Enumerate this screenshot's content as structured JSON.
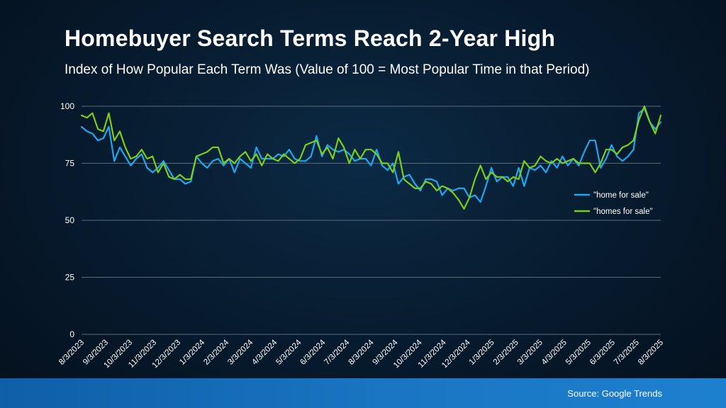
{
  "title": "Homebuyer Search Terms Reach 2-Year High",
  "subtitle": "Index of How Popular Each Term Was (Value of 100 = Most Popular Time in that Period)",
  "source": "Source: Google Trends",
  "colors": {
    "home_for_sale": "#1ea7f0",
    "homes_for_sale": "#7ccc1a",
    "gridline": "#5a6b7c",
    "axis_text": "#ffffff"
  },
  "chart_data": {
    "type": "line",
    "xlabel": "",
    "ylabel": "",
    "ylim": [
      0,
      100
    ],
    "yticks": [
      0,
      25,
      50,
      75,
      100
    ],
    "grid": true,
    "legend_position": "right",
    "x_tick_labels": [
      "8/3/2023",
      "9/3/2023",
      "10/3/2023",
      "11/3/2023",
      "12/3/2023",
      "1/3/2024",
      "2/3/2024",
      "3/3/2024",
      "4/3/2024",
      "5/3/2024",
      "6/3/2024",
      "7/3/2024",
      "8/3/2024",
      "9/3/2024",
      "10/3/2024",
      "11/3/2024",
      "12/3/2024",
      "1/3/2025",
      "2/3/2025",
      "3/3/2025",
      "4/3/2025",
      "5/3/2025",
      "6/3/2025",
      "7/3/2025",
      "8/3/2025"
    ],
    "series": [
      {
        "name": "\"home for sale\"",
        "color": "#1ea7f0",
        "values": [
          91,
          89,
          88,
          85,
          86,
          91,
          76,
          82,
          78,
          74,
          77,
          79,
          73,
          71,
          73,
          76,
          72,
          68,
          68,
          66,
          67,
          78,
          75,
          73,
          76,
          77,
          74,
          77,
          71,
          77,
          75,
          73,
          82,
          77,
          77,
          77,
          79,
          78,
          81,
          77,
          76,
          76,
          78,
          87,
          78,
          83,
          81,
          80,
          81,
          79,
          76,
          77,
          77,
          74,
          81,
          74,
          72,
          75,
          66,
          69,
          70,
          66,
          63,
          68,
          68,
          67,
          61,
          64,
          63,
          64,
          64,
          60,
          61,
          58,
          65,
          73,
          67,
          69,
          69,
          65,
          73,
          65,
          73,
          72,
          74,
          71,
          76,
          73,
          78,
          74,
          77,
          74,
          80,
          85,
          85,
          73,
          77,
          83,
          78,
          76,
          78,
          81,
          97,
          99,
          93,
          90,
          93
        ]
      },
      {
        "name": "\"homes for sale\"",
        "color": "#7ccc1a",
        "values": [
          96,
          95,
          97,
          90,
          89,
          97,
          85,
          89,
          82,
          77,
          78,
          81,
          77,
          78,
          71,
          75,
          69,
          68,
          70,
          68,
          68,
          78,
          79,
          80,
          82,
          82,
          75,
          77,
          75,
          78,
          80,
          76,
          79,
          74,
          79,
          77,
          76,
          79,
          77,
          75,
          77,
          83,
          84,
          85,
          79,
          82,
          77,
          86,
          82,
          75,
          81,
          77,
          81,
          81,
          79,
          75,
          75,
          71,
          80,
          68,
          66,
          64,
          64,
          67,
          66,
          63,
          65,
          64,
          62,
          59,
          55,
          60,
          68,
          74,
          68,
          71,
          69,
          69,
          67,
          69,
          68,
          76,
          73,
          74,
          78,
          76,
          75,
          77,
          75,
          76,
          77,
          75,
          75,
          75,
          71,
          75,
          81,
          81,
          79,
          82,
          83,
          85,
          94,
          100,
          93,
          88,
          96
        ]
      }
    ]
  }
}
